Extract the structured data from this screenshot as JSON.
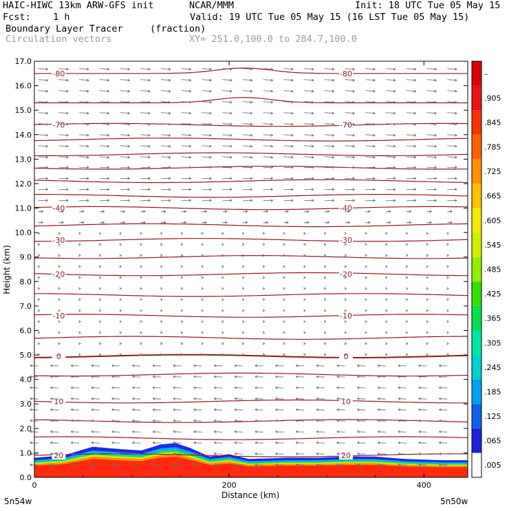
{
  "header": {
    "model": "HAIC-HIWC 13km ARW-GFS init",
    "org": "NCAR/MMM",
    "init": "Init: 18 UTC Tue 05 May 15",
    "fcst": "Fcst:    1 h",
    "valid": "Valid: 19 UTC Tue 05 May 15 (16 LST Tue 05 May 15)",
    "field1": "Boundary Layer Tracer",
    "field1_units": "(fraction)",
    "field2": "Circulation vectors",
    "xy": "XY= 251.0,100.0 to 284.7,100.0"
  },
  "chart_data": {
    "type": "heatmap",
    "xlabel": "Distance (km)",
    "ylabel": "Height (km)",
    "xlim": [
      0,
      445
    ],
    "ylim": [
      0,
      17
    ],
    "x_ticks": [
      "0",
      "200",
      "400"
    ],
    "x_tick_values": [
      0,
      200,
      400
    ],
    "x_end_labels": [
      "5n54w",
      "5n50w"
    ],
    "y_ticks": [
      "0.0",
      "1.0",
      "2.0",
      "3.0",
      "4.0",
      "5.0",
      "6.0",
      "7.0",
      "8.0",
      "9.0",
      "10.0",
      "11.0",
      "12.0",
      "13.0",
      "14.0",
      "15.0",
      "16.0",
      "17.0"
    ],
    "colorbar": {
      "labels": [
        ".005",
        ".065",
        ".125",
        ".185",
        ".245",
        ".305",
        ".365",
        ".425",
        ".485",
        ".545",
        ".605",
        ".665",
        ".725",
        ".785",
        ".845",
        ".905",
        "–"
      ],
      "colors": [
        "#ffffff",
        "#2020e0",
        "#1060f0",
        "#00a0f0",
        "#00d0d0",
        "#00e8a0",
        "#00e050",
        "#30e000",
        "#90f000",
        "#d0f000",
        "#f8e800",
        "#ffc000",
        "#ff9000",
        "#ff6000",
        "#ff3000",
        "#f01010",
        "#e00000"
      ]
    },
    "temperature_contours": {
      "color": "#8b1a1a",
      "lines": [
        {
          "label": "20",
          "height_km": 0.9
        },
        {
          "label": "",
          "height_km": 1.6
        },
        {
          "label": "",
          "height_km": 2.3
        },
        {
          "label": "10",
          "height_km": 3.1
        },
        {
          "label": "",
          "height_km": 4.2
        },
        {
          "label": "0",
          "height_km": 4.95
        },
        {
          "label": "",
          "height_km": 5.7
        },
        {
          "label": "-10",
          "height_km": 6.6
        },
        {
          "label": "",
          "height_km": 7.45
        },
        {
          "label": "-20",
          "height_km": 8.3
        },
        {
          "label": "",
          "height_km": 9.0
        },
        {
          "label": "-30",
          "height_km": 9.7
        },
        {
          "label": "",
          "height_km": 10.3
        },
        {
          "label": "-40",
          "height_km": 11.0
        },
        {
          "label": "",
          "height_km": 11.5
        },
        {
          "label": "",
          "height_km": 12.1
        },
        {
          "label": "",
          "height_km": 12.65
        },
        {
          "label": "",
          "height_km": 13.2
        },
        {
          "label": "",
          "height_km": 13.8
        },
        {
          "label": "-70",
          "height_km": 14.4
        },
        {
          "label": "",
          "height_km": 15.3
        },
        {
          "label": "-80",
          "height_km": 16.5
        }
      ]
    },
    "boundary_layer_top_km": [
      [
        0,
        0.8
      ],
      [
        30,
        0.9
      ],
      [
        60,
        1.25
      ],
      [
        90,
        1.15
      ],
      [
        110,
        1.1
      ],
      [
        130,
        1.35
      ],
      [
        145,
        1.4
      ],
      [
        160,
        1.2
      ],
      [
        180,
        0.85
      ],
      [
        200,
        0.95
      ],
      [
        220,
        0.75
      ],
      [
        260,
        0.8
      ],
      [
        290,
        0.8
      ],
      [
        320,
        0.85
      ],
      [
        350,
        0.85
      ],
      [
        380,
        0.75
      ],
      [
        420,
        0.7
      ],
      [
        445,
        0.7
      ]
    ]
  }
}
